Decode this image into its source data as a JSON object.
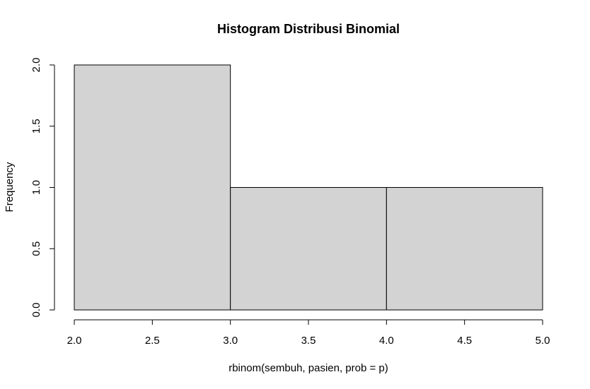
{
  "chart_data": {
    "type": "bar",
    "title": "Histogram Distribusi Binomial",
    "xlabel": "rbinom(sembuh, pasien, prob = p)",
    "ylabel": "Frequency",
    "bins": [
      {
        "start": 2.0,
        "end": 3.0,
        "value": 2
      },
      {
        "start": 3.0,
        "end": 4.0,
        "value": 1
      },
      {
        "start": 4.0,
        "end": 5.0,
        "value": 1
      }
    ],
    "xlim": [
      2.0,
      5.0
    ],
    "ylim": [
      0,
      2.0
    ],
    "x_ticks": [
      "2.0",
      "2.5",
      "3.0",
      "3.5",
      "4.0",
      "4.5",
      "5.0"
    ],
    "y_ticks": [
      "0.0",
      "0.5",
      "1.0",
      "1.5",
      "2.0"
    ],
    "bar_fill": "#d3d3d3",
    "bar_stroke": "#000000",
    "grid": false
  }
}
